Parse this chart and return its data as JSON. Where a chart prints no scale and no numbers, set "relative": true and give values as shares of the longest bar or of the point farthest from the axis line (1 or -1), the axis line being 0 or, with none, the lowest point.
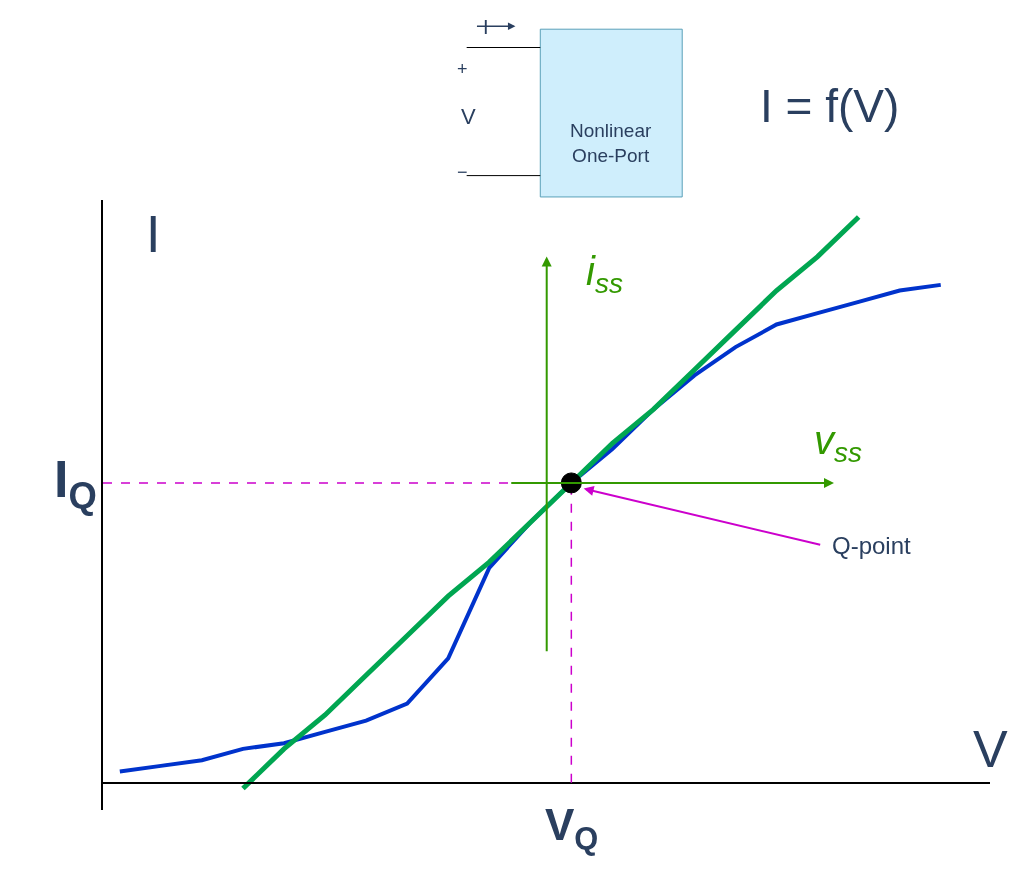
{
  "chart_data": {
    "type": "line",
    "relative": true,
    "xlabel": "V",
    "ylabel": "I",
    "categories": [
      null,
      null,
      null,
      null,
      null,
      null,
      null,
      null,
      null,
      null,
      null,
      null,
      null,
      null,
      null,
      null,
      null,
      null,
      null,
      null,
      null
    ],
    "series": [
      {
        "color": "#0033cc",
        "values": [
          0.02,
          0.03,
          0.04,
          0.06,
          0.07,
          0.09,
          0.11,
          0.14,
          0.22,
          0.38,
          0.46,
          0.53,
          0.59,
          0.66,
          0.72,
          0.77,
          0.81,
          0.83,
          0.85,
          0.87,
          0.88
        ]
      },
      {
        "color": "#00a651",
        "values": [
          null,
          null,
          null,
          -0.01,
          0.06,
          0.12,
          0.19,
          0.26,
          0.33,
          0.39,
          0.46,
          0.53,
          0.6,
          0.66,
          0.73,
          0.8,
          0.87,
          0.93,
          1.0,
          null,
          null
        ]
      }
    ],
    "ref_lines": [
      {
        "axis": "y",
        "value": 0.53,
        "label": "I$_{Q}$",
        "color": "#cc00cc",
        "line_style": "dashed"
      }
    ],
    "annotations": [
      "I = f(V)",
      "Nonlinear One-Port",
      "I",
      "+",
      "V",
      "−",
      "i$_{ss}$",
      "v$_{ss}$",
      "Q-point",
      "V$_{Q}$"
    ],
    "marker": "none"
  }
}
